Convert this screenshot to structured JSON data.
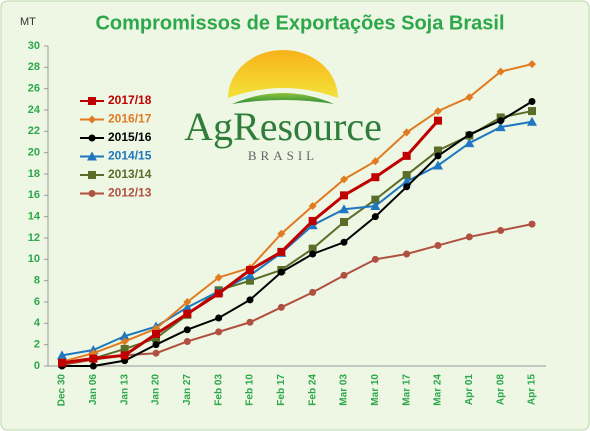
{
  "chart_data": {
    "type": "line",
    "title": "Compromissos de Exportações Soja Brasil",
    "y_label": "MT",
    "logo": {
      "name": "AgResource",
      "sub": "BRASIL"
    },
    "categories": [
      "Dec 30",
      "Jan 06",
      "Jan 13",
      "Jan 20",
      "Jan 27",
      "Feb 03",
      "Feb 10",
      "Feb 17",
      "Feb 24",
      "Mar 03",
      "Mar 10",
      "Mar 17",
      "Mar 24",
      "Apr 01",
      "Apr 08",
      "Apr 15"
    ],
    "series": [
      {
        "name": "2017/18",
        "color": "#c00000",
        "marker": "square",
        "values": [
          0.3,
          0.7,
          1.0,
          3.0,
          4.9,
          6.8,
          9.0,
          10.7,
          13.6,
          16.0,
          17.7,
          19.7,
          23.0,
          null,
          null,
          null
        ]
      },
      {
        "name": "2016/17",
        "color": "#e07b20",
        "marker": "diamond",
        "values": [
          0.4,
          1.2,
          2.3,
          3.5,
          6.0,
          8.3,
          9.2,
          12.4,
          15.0,
          17.5,
          19.2,
          21.9,
          23.9,
          25.2,
          27.6,
          28.3
        ]
      },
      {
        "name": "2015/16",
        "color": "#000000",
        "marker": "circle",
        "values": [
          0,
          0,
          0.5,
          2.0,
          3.4,
          4.5,
          6.2,
          8.8,
          10.5,
          11.6,
          14.0,
          16.8,
          19.7,
          21.7,
          23.0,
          24.8
        ]
      },
      {
        "name": "2014/15",
        "color": "#1f77c0",
        "marker": "triangle",
        "values": [
          1.0,
          1.5,
          2.8,
          3.7,
          5.5,
          7.0,
          8.5,
          10.6,
          13.2,
          14.7,
          15.0,
          17.3,
          18.8,
          20.9,
          22.4,
          22.9
        ]
      },
      {
        "name": "2013/14",
        "color": "#5a6e2a",
        "marker": "square",
        "values": [
          0.2,
          0.7,
          1.6,
          2.6,
          4.8,
          7.1,
          8.0,
          9.0,
          11.0,
          13.5,
          15.6,
          17.9,
          20.2,
          21.6,
          23.3,
          23.9
        ]
      },
      {
        "name": "2012/13",
        "color": "#b05040",
        "marker": "circle",
        "values": [
          0.1,
          0.6,
          1.0,
          1.2,
          2.3,
          3.2,
          4.1,
          5.5,
          6.9,
          8.5,
          10.0,
          10.5,
          11.3,
          12.1,
          12.7,
          13.3
        ]
      }
    ],
    "ylim": [
      0,
      30
    ],
    "yticks": [
      0,
      2,
      4,
      6,
      8,
      10,
      12,
      14,
      16,
      18,
      20,
      22,
      24,
      26,
      28,
      30
    ],
    "grid": false,
    "legend": "upper-left"
  }
}
